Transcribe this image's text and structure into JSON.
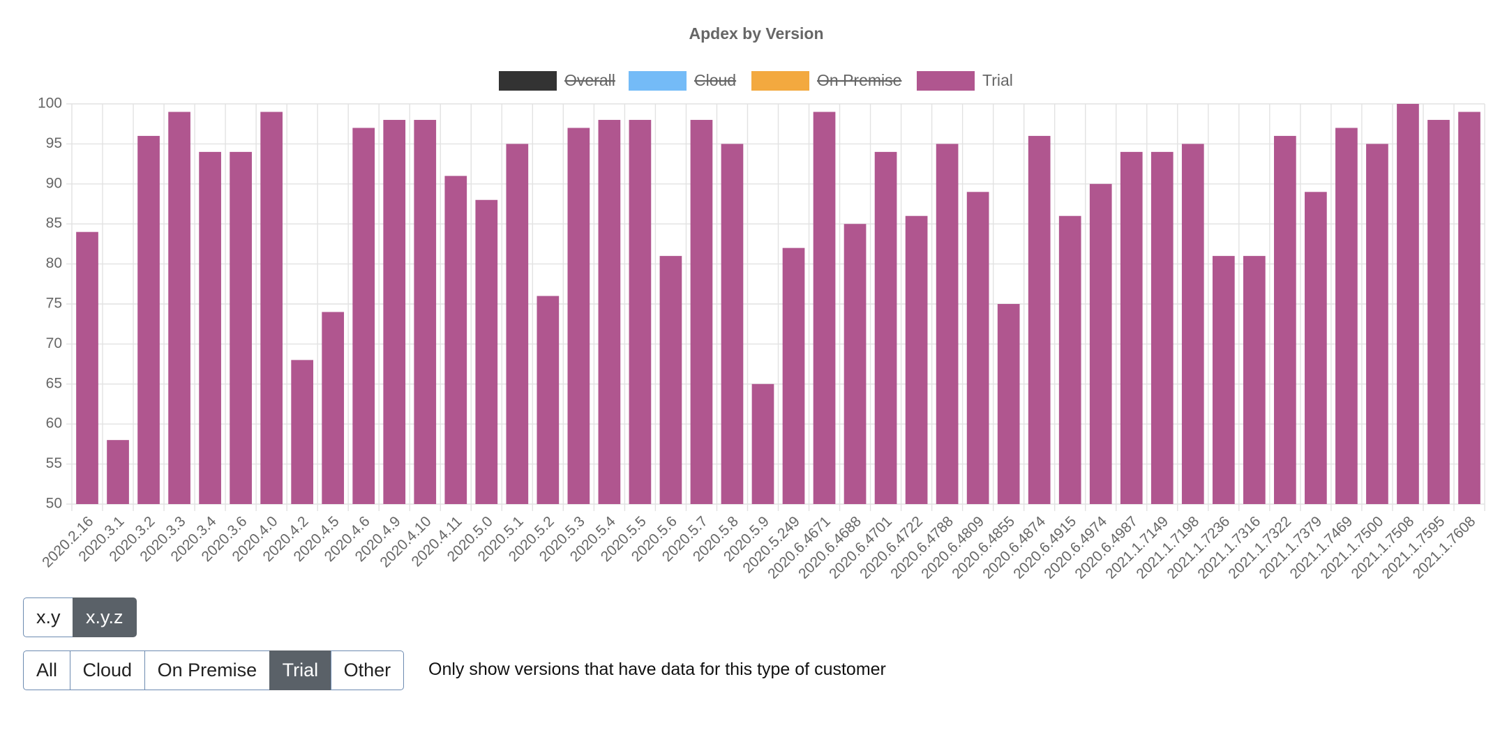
{
  "chart_data": {
    "type": "bar",
    "title": "Apdex by Version",
    "categories": [
      "2020.2.16",
      "2020.3.1",
      "2020.3.2",
      "2020.3.3",
      "2020.3.4",
      "2020.3.6",
      "2020.4.0",
      "2020.4.2",
      "2020.4.5",
      "2020.4.6",
      "2020.4.9",
      "2020.4.10",
      "2020.4.11",
      "2020.5.0",
      "2020.5.1",
      "2020.5.2",
      "2020.5.3",
      "2020.5.4",
      "2020.5.5",
      "2020.5.6",
      "2020.5.7",
      "2020.5.8",
      "2020.5.9",
      "2020.5.249",
      "2020.6.4671",
      "2020.6.4688",
      "2020.6.4701",
      "2020.6.4722",
      "2020.6.4788",
      "2020.6.4809",
      "2020.6.4855",
      "2020.6.4874",
      "2020.6.4915",
      "2020.6.4974",
      "2020.6.4987",
      "2021.1.7149",
      "2021.1.7198",
      "2021.1.7236",
      "2021.1.7316",
      "2021.1.7322",
      "2021.1.7379",
      "2021.1.7469",
      "2021.1.7500",
      "2021.1.7508",
      "2021.1.7595",
      "2021.1.7608"
    ],
    "series": [
      {
        "name": "Overall",
        "color": "#333333",
        "hidden": true
      },
      {
        "name": "Cloud",
        "color": "#74bbf7",
        "hidden": true
      },
      {
        "name": "On Premise",
        "color": "#f3a93f",
        "hidden": true
      },
      {
        "name": "Trial",
        "color": "#b0568f",
        "hidden": false,
        "values": [
          84,
          58,
          96,
          99,
          94,
          94,
          99,
          68,
          74,
          97,
          98,
          98,
          91,
          88,
          95,
          76,
          97,
          98,
          98,
          81,
          98,
          95,
          65,
          82,
          99,
          85,
          94,
          86,
          95,
          89,
          75,
          96,
          86,
          90,
          94,
          94,
          95,
          81,
          81,
          96,
          89,
          97,
          95,
          100,
          98,
          99
        ]
      }
    ],
    "ylim": [
      50,
      100
    ],
    "yticks": [
      50,
      55,
      60,
      65,
      70,
      75,
      80,
      85,
      90,
      95,
      100
    ],
    "grid": true,
    "legend": "top"
  },
  "controls": {
    "version_format": {
      "options": [
        "x.y",
        "x.y.z"
      ],
      "active": 1
    },
    "customer_filter": {
      "options": [
        "All",
        "Cloud",
        "On Premise",
        "Trial",
        "Other"
      ],
      "active": 3
    },
    "note": "Only show versions that have data for this type of customer"
  }
}
